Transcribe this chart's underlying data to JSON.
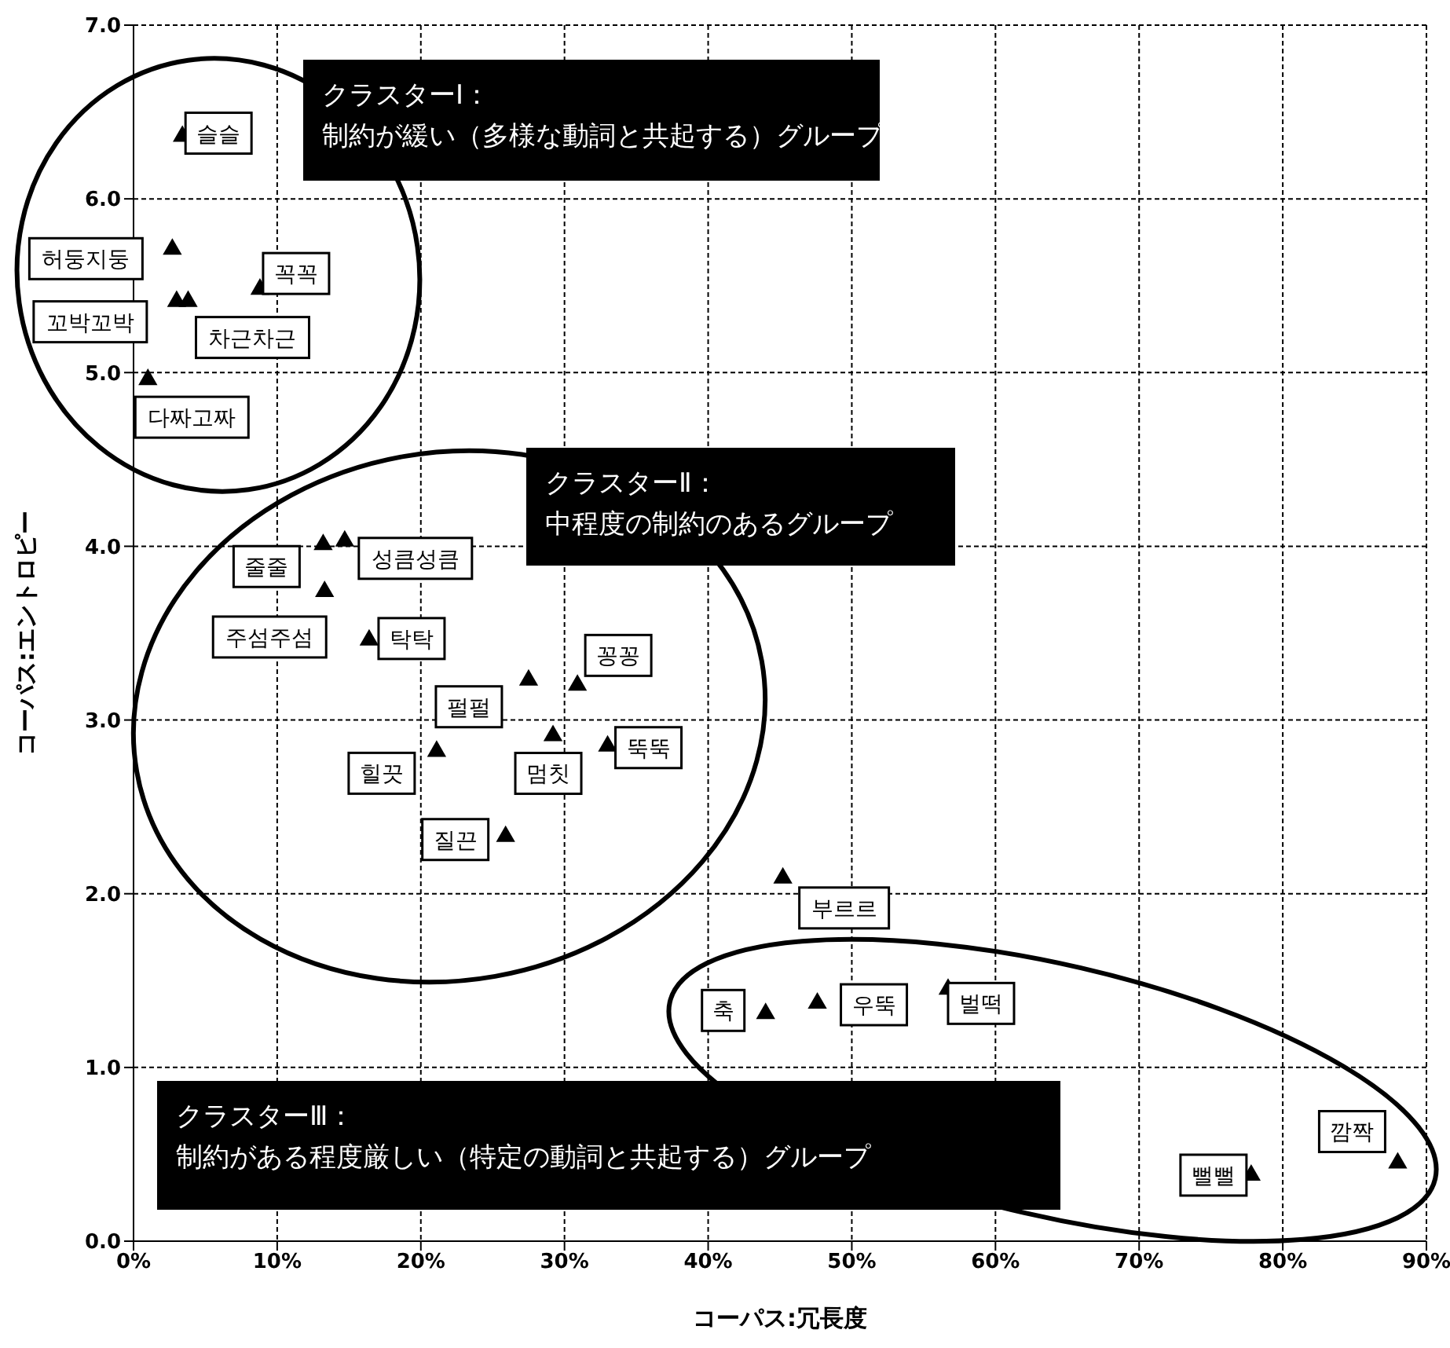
{
  "chart_data": {
    "type": "scatter",
    "xlabel": "コーパス:冗長度",
    "ylabel": "コーパス:エントロピー",
    "x": [
      3.4,
      2.7,
      3.0,
      8.8,
      3.8,
      1.0,
      13.2,
      14.7,
      13.3,
      16.4,
      27.5,
      30.9,
      29.2,
      33.0,
      21.1,
      25.9,
      45.2,
      44.0,
      47.6,
      56.7,
      77.8,
      88.0
    ],
    "series": [
      {
        "color": "#000000",
        "values": [
          6.36,
          5.71,
          5.41,
          5.48,
          5.41,
          4.96,
          4.01,
          4.03,
          3.74,
          3.46,
          3.23,
          3.2,
          2.91,
          2.85,
          2.82,
          2.33,
          2.09,
          1.31,
          1.37,
          1.45,
          0.38,
          0.45
        ],
        "value_labels": [
          "슬슬",
          "허둥지둥",
          "꼬박꼬박",
          "꼭꼭",
          "차근차근",
          "다짜고짜",
          "줄줄",
          "성큼성큼",
          "주섬주섬",
          "탁탁",
          "펄펄",
          "꽁꽁",
          "멈칫",
          "뚝뚝",
          "힐끗",
          "질끈",
          "부르르",
          "축",
          "우뚝",
          "벌떡",
          "뻘뻘",
          "깜짝"
        ]
      }
    ],
    "marker": "triangle",
    "xlim": [
      0,
      90
    ],
    "xticks": [
      {
        "value": 0,
        "label": "0%"
      },
      {
        "value": 10,
        "label": "10%"
      },
      {
        "value": 20,
        "label": "20%"
      },
      {
        "value": 30,
        "label": "30%"
      },
      {
        "value": 40,
        "label": "40%"
      },
      {
        "value": 50,
        "label": "50%"
      },
      {
        "value": 60,
        "label": "60%"
      },
      {
        "value": 70,
        "label": "70%"
      },
      {
        "value": 80,
        "label": "80%"
      },
      {
        "value": 90,
        "label": "90%"
      }
    ],
    "ylim": [
      0,
      7
    ],
    "yticks": [
      {
        "value": 0,
        "label": "0.0"
      },
      {
        "value": 1,
        "label": "1.0"
      },
      {
        "value": 2,
        "label": "2.0"
      },
      {
        "value": 3,
        "label": "3.0"
      },
      {
        "value": 4,
        "label": "4.0"
      },
      {
        "value": 5,
        "label": "5.0"
      },
      {
        "value": 6,
        "label": "6.0"
      },
      {
        "value": 7,
        "label": "7.0"
      }
    ],
    "grid": true,
    "legend": false,
    "annotations": [
      "クラスターⅠ：",
      "制約が緩い（多様な動詞と共起する）グループ",
      "クラスターⅡ：",
      "中程度の制約のあるグループ",
      "クラスターⅢ：",
      "制約がある程度厳しい（特定の動詞と共起する）グループ"
    ]
  }
}
